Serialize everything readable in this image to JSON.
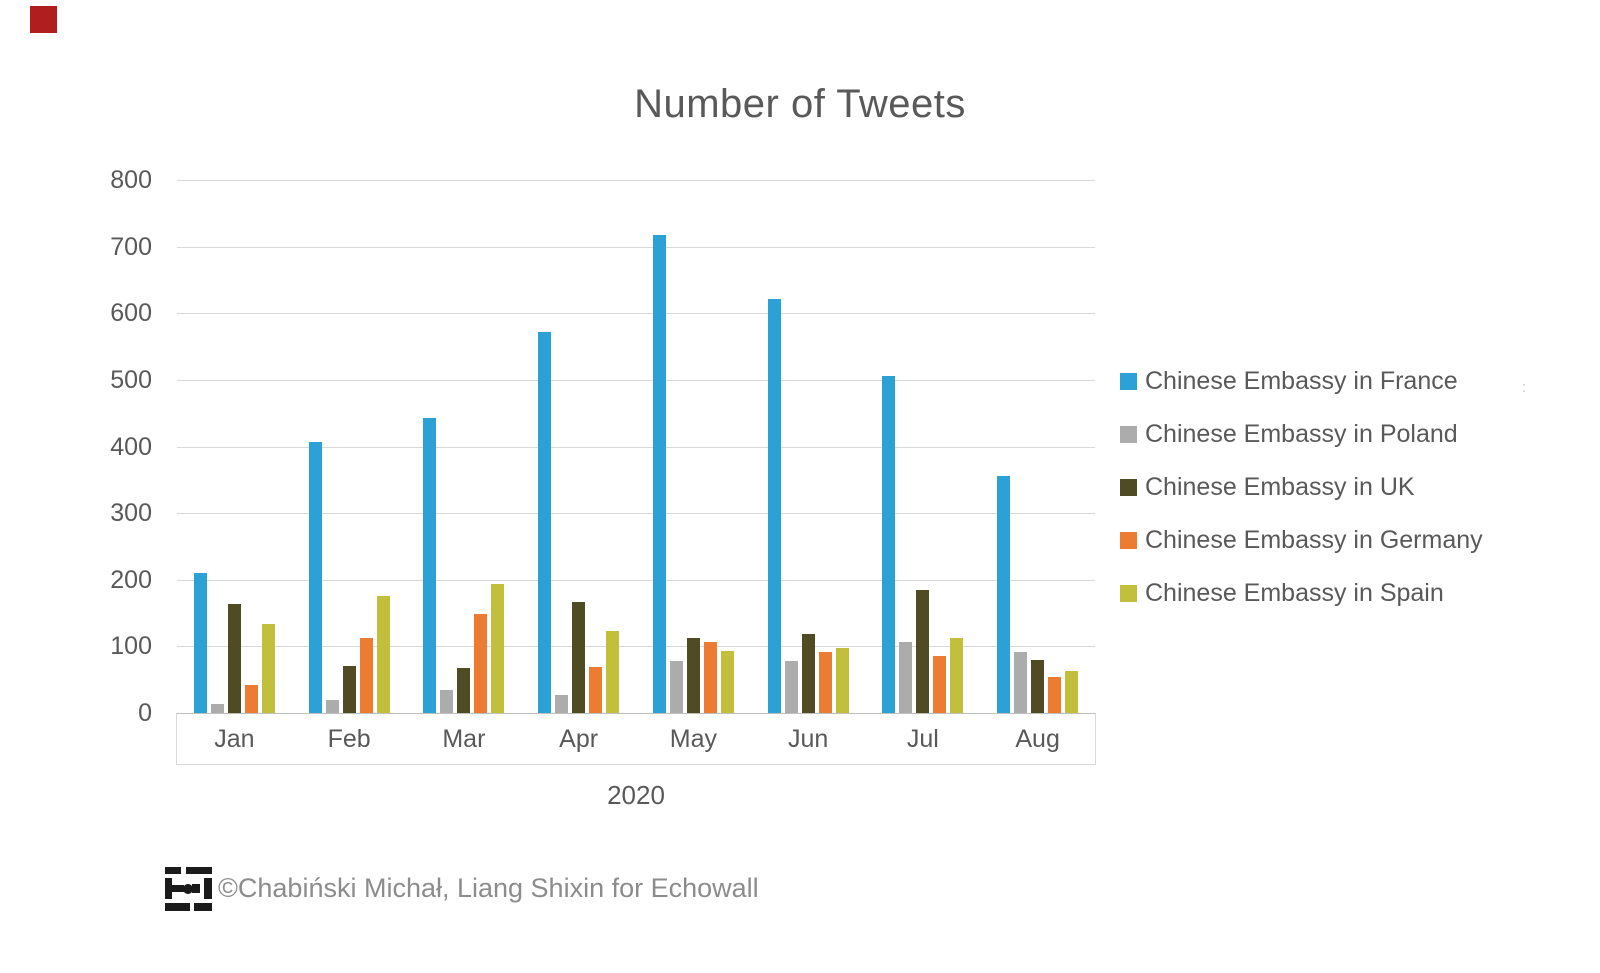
{
  "marker": {
    "color": "#b11e1e"
  },
  "chart_data": {
    "type": "bar",
    "title": "Number of Tweets",
    "xlabel": "2020",
    "ylabel": "",
    "categories": [
      "Jan",
      "Feb",
      "Mar",
      "Apr",
      "May",
      "Jun",
      "Jul",
      "Aug"
    ],
    "series": [
      {
        "name": "Chinese Embassy in France",
        "color": "#2ba1d6",
        "values": [
          210,
          407,
          443,
          572,
          718,
          622,
          506,
          356
        ]
      },
      {
        "name": "Chinese Embassy in Poland",
        "color": "#acacac",
        "values": [
          14,
          19,
          35,
          27,
          78,
          78,
          107,
          92
        ]
      },
      {
        "name": "Chinese Embassy in UK",
        "color": "#4f4b22",
        "values": [
          164,
          70,
          67,
          167,
          113,
          119,
          185,
          80
        ]
      },
      {
        "name": "Chinese Embassy in Germany",
        "color": "#ec7c31",
        "values": [
          42,
          112,
          149,
          69,
          106,
          92,
          85,
          54
        ]
      },
      {
        "name": "Chinese Embassy in Spain",
        "color": "#c1bf3c",
        "values": [
          133,
          176,
          194,
          123,
          93,
          97,
          113,
          63
        ]
      }
    ],
    "ylim": [
      0,
      800
    ],
    "ytick_step": 100,
    "grid": true,
    "legend_position": "right"
  },
  "artifact": {
    "text": ":"
  },
  "footer": {
    "logo": "echowall-logo",
    "credit": "©Chabiński Michał, Liang Shixin for Echowall"
  }
}
